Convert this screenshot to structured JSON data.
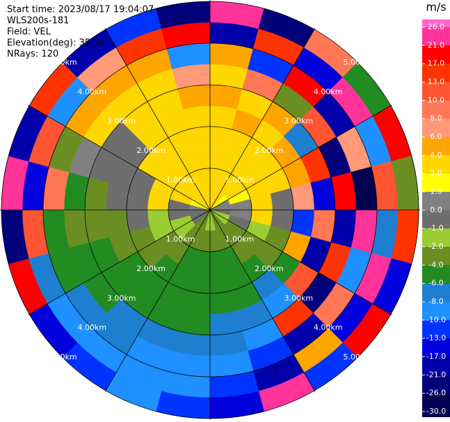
{
  "chart_data": {
    "type": "ppi",
    "info": [
      "Start time: 2023/08/17 19:04:07",
      "WLS200s-181",
      "Field: VEL",
      "Elevation(deg): 35.30",
      "NRays: 120"
    ],
    "rlim": [
      0,
      5
    ],
    "rings": [
      {
        "value": 1,
        "label": "1.00km"
      },
      {
        "value": 2,
        "label": "2.00km"
      },
      {
        "value": 3,
        "label": "3.00km"
      },
      {
        "value": 4,
        "label": "4.00km"
      },
      {
        "value": 5,
        "label": "5.00km"
      }
    ],
    "field": [
      [
        3,
        2.5,
        3,
        2.5,
        3,
        4,
        3,
        5,
        -20,
        22
      ],
      [
        2.5,
        3,
        3,
        2.5,
        4,
        3,
        8,
        -12,
        14,
        -25
      ],
      [
        2,
        3,
        2.5,
        3,
        3.5,
        5,
        -3,
        18,
        -15,
        9
      ],
      [
        1.5,
        2.5,
        3,
        3,
        4,
        -8,
        12,
        -18,
        24,
        -5
      ],
      [
        0.5,
        1.5,
        2.5,
        3,
        5,
        15,
        -22,
        7,
        -10,
        19
      ],
      [
        0.5,
        0.5,
        2,
        -0.5,
        6,
        -14,
        20,
        -27,
        11,
        -3
      ],
      [
        -0.5,
        0.5,
        2.5,
        -0.5,
        -12,
        9,
        -18,
        25,
        -7,
        14
      ],
      [
        -1.5,
        -0.5,
        -1.5,
        -2.5,
        5,
        -20,
        13,
        -9,
        22,
        -16
      ],
      [
        -1.5,
        -2.5,
        -2.5,
        -3,
        -5,
        12,
        -25,
        8,
        -14,
        19
      ],
      [
        -2.5,
        -3,
        -3,
        -5,
        -7,
        -9,
        15,
        -20,
        4,
        -11
      ],
      [
        -2.5,
        -3,
        -4.5,
        -5,
        -5,
        -7,
        -9,
        -12,
        -18,
        23
      ],
      [
        -1.5,
        -3,
        -4.5,
        -5,
        -5,
        -7,
        -7,
        -9,
        -11,
        -14
      ],
      [
        -1.5,
        -2.5,
        -4.5,
        -5,
        -5,
        -5,
        -7,
        -9,
        -9,
        -11
      ],
      [
        -2.5,
        -3,
        -4.5,
        -5,
        -5,
        -5,
        -7,
        -9,
        -9,
        -9
      ],
      [
        -2.5,
        -3,
        -3,
        -5,
        -5,
        -5,
        -7,
        -7,
        -9,
        -12
      ],
      [
        -0.5,
        -1.5,
        -3,
        -3,
        -5,
        -5,
        -5,
        -7,
        -9,
        -15
      ],
      [
        -0.5,
        -1.5,
        -1.5,
        -3,
        -3,
        -5,
        -5,
        -5,
        -7,
        18
      ],
      [
        -0.5,
        -0.5,
        -1.5,
        -0.5,
        -3,
        -3,
        -3,
        -5,
        10,
        -22
      ],
      [
        0.5,
        -0.5,
        2.5,
        -0.5,
        -0.5,
        -3,
        -5,
        8,
        -16,
        21
      ],
      [
        1.5,
        2.5,
        3,
        -0.5,
        -0.5,
        -0.5,
        0.5,
        -3,
        12,
        -18
      ],
      [
        2.5,
        3,
        3,
        2.5,
        -0.5,
        -0.5,
        3,
        5,
        -9,
        15
      ],
      [
        2.5,
        3,
        3,
        2.5,
        3,
        3,
        3,
        4.5,
        7,
        -20
      ],
      [
        3,
        2.5,
        3,
        3,
        2.5,
        3,
        3,
        5,
        14,
        -12
      ],
      [
        3,
        3,
        2.5,
        3,
        3,
        4,
        6,
        -10,
        19,
        -24
      ]
    ],
    "colorbar": {
      "label": "m/s",
      "ticks": [
        {
          "value": 26,
          "label": "26.0"
        },
        {
          "value": 21,
          "label": "21.0"
        },
        {
          "value": 17,
          "label": "17.0"
        },
        {
          "value": 13,
          "label": "13.0"
        },
        {
          "value": 10,
          "label": "10.0"
        },
        {
          "value": 8,
          "label": "8.0"
        },
        {
          "value": 6,
          "label": "6.0"
        },
        {
          "value": 4,
          "label": "4.0"
        },
        {
          "value": 2,
          "label": "2.0"
        },
        {
          "value": 1,
          "label": "1.0"
        },
        {
          "value": 0,
          "label": "0.0"
        },
        {
          "value": -1,
          "label": "-1.0"
        },
        {
          "value": -2,
          "label": "-2.0"
        },
        {
          "value": -4,
          "label": "-4.0"
        },
        {
          "value": -6,
          "label": "-6.0"
        },
        {
          "value": -8,
          "label": "-8.0"
        },
        {
          "value": -10,
          "label": "-10.0"
        },
        {
          "value": -13,
          "label": "-13.0"
        },
        {
          "value": -17,
          "label": "-17.0"
        },
        {
          "value": -21,
          "label": "-21.0"
        },
        {
          "value": -26,
          "label": "-26.0"
        },
        {
          "value": -30,
          "label": "-30.0"
        }
      ],
      "colors": [
        "#ff3399",
        "#ff0000",
        "#ff3300",
        "#ff5533",
        "#ff7755",
        "#ff9977",
        "#ffa500",
        "#ffd700",
        "#ffff00",
        "#808080",
        "#6e6e6e",
        "#9acd32",
        "#6b8e23",
        "#228b22",
        "#1e7fd0",
        "#1e90ff",
        "#0033ff",
        "#0000dd",
        "#0000aa",
        "#00007a",
        "#000050"
      ],
      "over_color": "#ff66cc"
    }
  }
}
